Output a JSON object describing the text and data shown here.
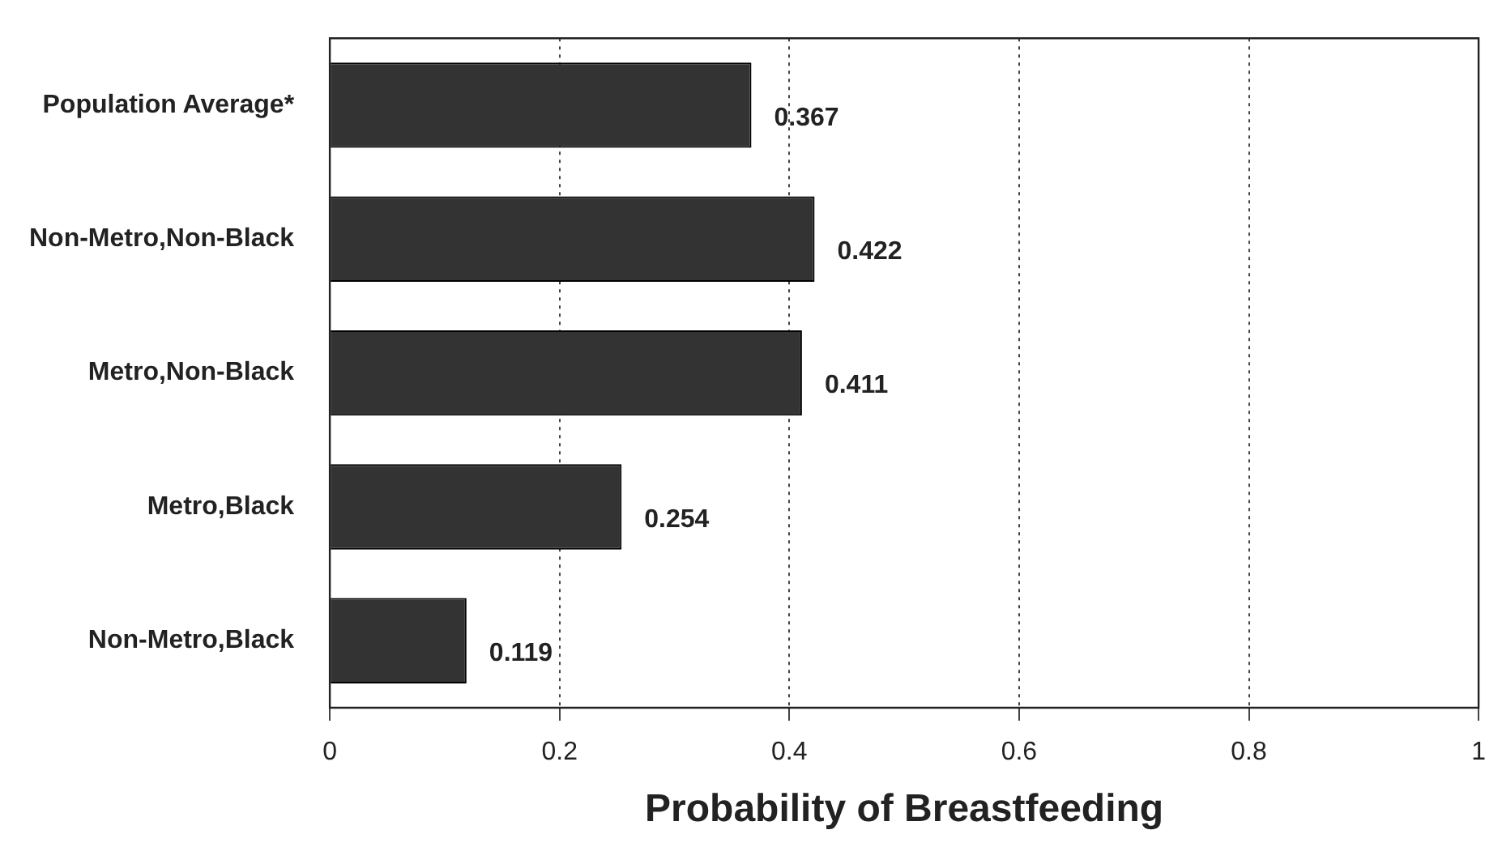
{
  "chart_data": {
    "type": "bar",
    "orientation": "horizontal",
    "xlabel": "Probability of Breastfeeding",
    "categories": [
      "Population Average*",
      "Non-Metro,Non-Black",
      "Metro,Non-Black",
      "Metro,Black",
      "Non-Metro,Black"
    ],
    "values": [
      0.367,
      0.422,
      0.411,
      0.254,
      0.119
    ],
    "color": "#333333",
    "xlim": [
      0,
      1
    ],
    "xticks": [
      0,
      0.2,
      0.4,
      0.6,
      0.8,
      1
    ],
    "grid": "x",
    "data_labels": true
  }
}
